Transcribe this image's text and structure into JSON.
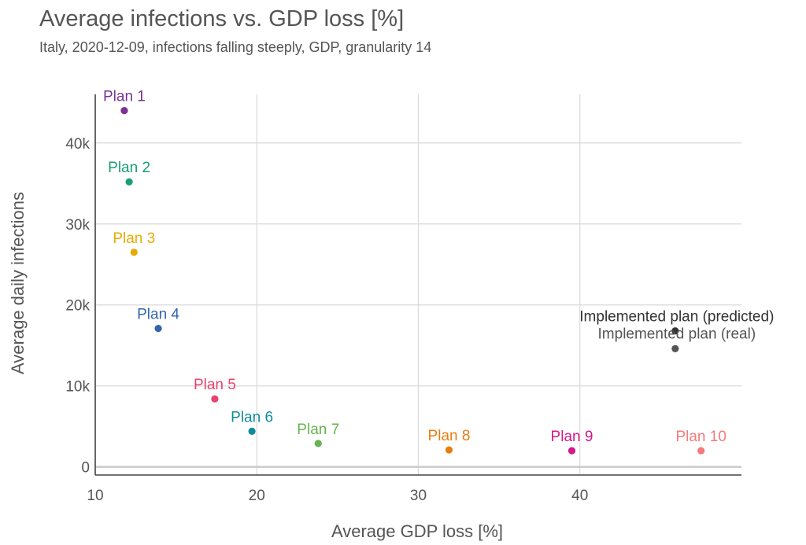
{
  "title": "Average infections vs. GDP loss [%]",
  "subtitle": "Italy, 2020-12-09, infections falling steeply, GDP, granularity 14",
  "chart_data": {
    "type": "scatter",
    "title": "Average infections vs. GDP loss [%]",
    "subtitle": "Italy, 2020-12-09, infections falling steeply, GDP, granularity 14",
    "xlabel": "Average GDP loss [%]",
    "ylabel": "Average daily infections",
    "xlim": [
      10,
      50
    ],
    "ylim": [
      -1000,
      46000
    ],
    "xticks": [
      10,
      20,
      30,
      40
    ],
    "xtick_labels": [
      "10",
      "20",
      "30",
      "40"
    ],
    "yticks": [
      0,
      10000,
      20000,
      30000,
      40000
    ],
    "ytick_labels": [
      "0",
      "10k",
      "20k",
      "30k",
      "40k"
    ],
    "grid": true,
    "legend": "none",
    "points": [
      {
        "label": "Plan 1",
        "x": 11.8,
        "y": 44000,
        "color": "#7b3294"
      },
      {
        "label": "Plan 2",
        "x": 12.1,
        "y": 35200,
        "color": "#1a9e77"
      },
      {
        "label": "Plan 3",
        "x": 12.4,
        "y": 26500,
        "color": "#e6ab02"
      },
      {
        "label": "Plan 4",
        "x": 13.9,
        "y": 17100,
        "color": "#3366aa"
      },
      {
        "label": "Plan 5",
        "x": 17.4,
        "y": 8400,
        "color": "#e7436e"
      },
      {
        "label": "Plan 6",
        "x": 19.7,
        "y": 4400,
        "color": "#0f8b9d"
      },
      {
        "label": "Plan 7",
        "x": 23.8,
        "y": 2900,
        "color": "#66b34f"
      },
      {
        "label": "Plan 8",
        "x": 31.9,
        "y": 2100,
        "color": "#e67e12"
      },
      {
        "label": "Plan 9",
        "x": 39.5,
        "y": 2000,
        "color": "#d4178a"
      },
      {
        "label": "Plan 10",
        "x": 47.5,
        "y": 2000,
        "color": "#f27b7b"
      },
      {
        "label": "Implemented plan (predicted)",
        "x": 45.9,
        "y": 16800,
        "color": "#333333"
      },
      {
        "label": "Implemented plan (real)",
        "x": 45.9,
        "y": 14600,
        "color": "#555555"
      }
    ]
  }
}
